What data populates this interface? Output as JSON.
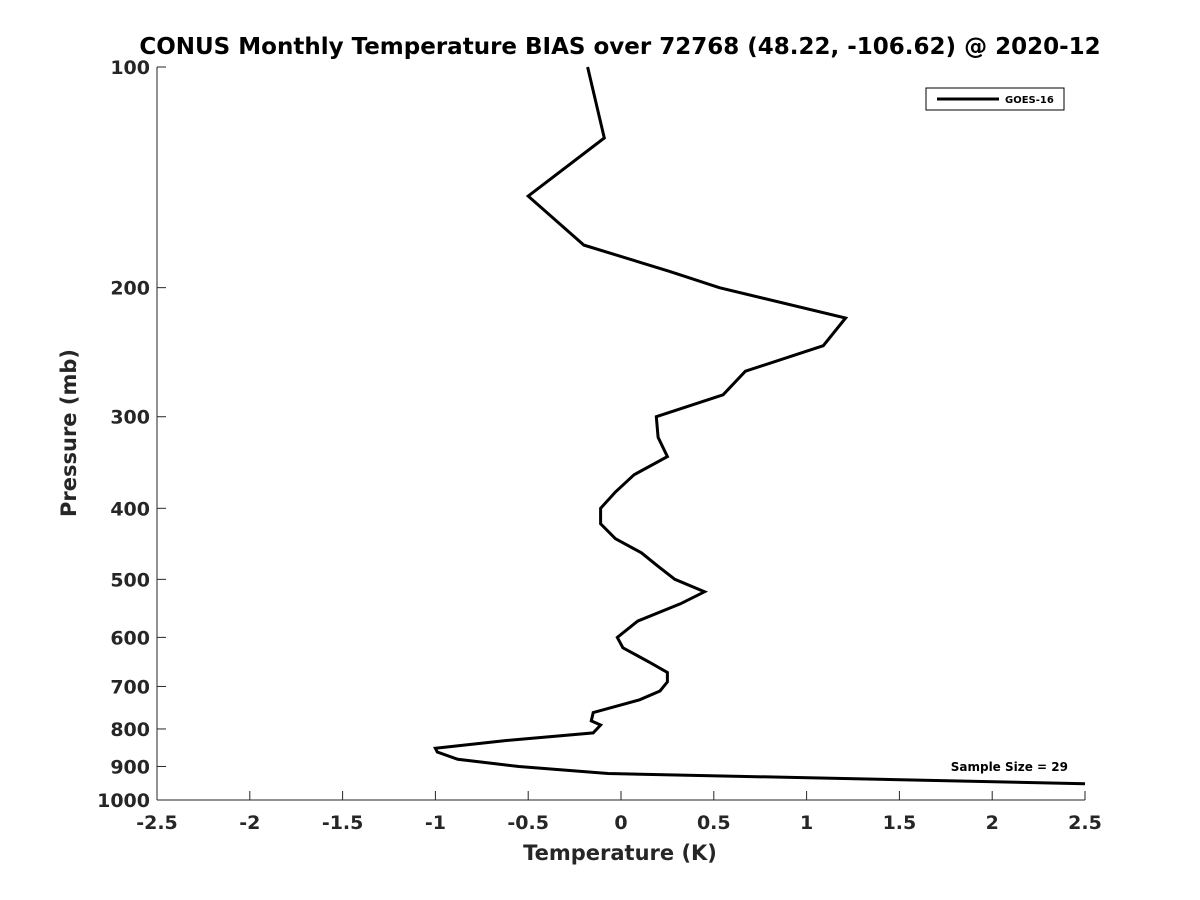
{
  "chart_data": {
    "type": "line",
    "title": "CONUS Monthly Temperature BIAS over 72768 (48.22, -106.62) @ 2020-12",
    "xlabel": "Temperature (K)",
    "ylabel": "Pressure (mb)",
    "xlim": [
      -2.5,
      2.5
    ],
    "ylim": [
      100,
      1000
    ],
    "y_scale": "log",
    "y_reversed": true,
    "x_ticks": [
      -2.5,
      -2,
      -1.5,
      -1,
      -0.5,
      0,
      0.5,
      1,
      1.5,
      2,
      2.5
    ],
    "x_tick_labels": [
      "-2.5",
      "-2",
      "-1.5",
      "-1",
      "-0.5",
      "0",
      "0.5",
      "1",
      "1.5",
      "2",
      "2.5"
    ],
    "y_ticks": [
      100,
      200,
      300,
      400,
      500,
      600,
      700,
      800,
      900,
      1000
    ],
    "y_tick_labels": [
      "100",
      "200",
      "300",
      "400",
      "500",
      "600",
      "700",
      "800",
      "900",
      "1000"
    ],
    "grid": false,
    "legend_position": "top-right",
    "annotation": "Sample Size = 29",
    "series": [
      {
        "name": "GOES-16",
        "color": "#000000",
        "points": [
          [
            -0.18,
            100
          ],
          [
            -0.09,
            125
          ],
          [
            -0.5,
            150
          ],
          [
            -0.2,
            175
          ],
          [
            0.26,
            190
          ],
          [
            0.53,
            200
          ],
          [
            1.21,
            220
          ],
          [
            1.09,
            240
          ],
          [
            0.67,
            260
          ],
          [
            0.55,
            280
          ],
          [
            0.19,
            300
          ],
          [
            0.2,
            320
          ],
          [
            0.25,
            340
          ],
          [
            0.07,
            360
          ],
          [
            -0.03,
            380
          ],
          [
            -0.11,
            400
          ],
          [
            -0.11,
            420
          ],
          [
            -0.03,
            440
          ],
          [
            0.11,
            460
          ],
          [
            0.2,
            480
          ],
          [
            0.29,
            500
          ],
          [
            0.45,
            520
          ],
          [
            0.32,
            540
          ],
          [
            0.09,
            570
          ],
          [
            -0.02,
            600
          ],
          [
            0.01,
            620
          ],
          [
            0.16,
            650
          ],
          [
            0.25,
            670
          ],
          [
            0.25,
            690
          ],
          [
            0.21,
            710
          ],
          [
            0.1,
            730
          ],
          [
            -0.15,
            760
          ],
          [
            -0.16,
            780
          ],
          [
            -0.11,
            790
          ],
          [
            -0.15,
            810
          ],
          [
            -0.63,
            830
          ],
          [
            -1.0,
            850
          ],
          [
            -0.99,
            860
          ],
          [
            -0.88,
            880
          ],
          [
            -0.55,
            900
          ],
          [
            -0.07,
            920
          ],
          [
            2.5,
            950
          ]
        ]
      }
    ]
  }
}
